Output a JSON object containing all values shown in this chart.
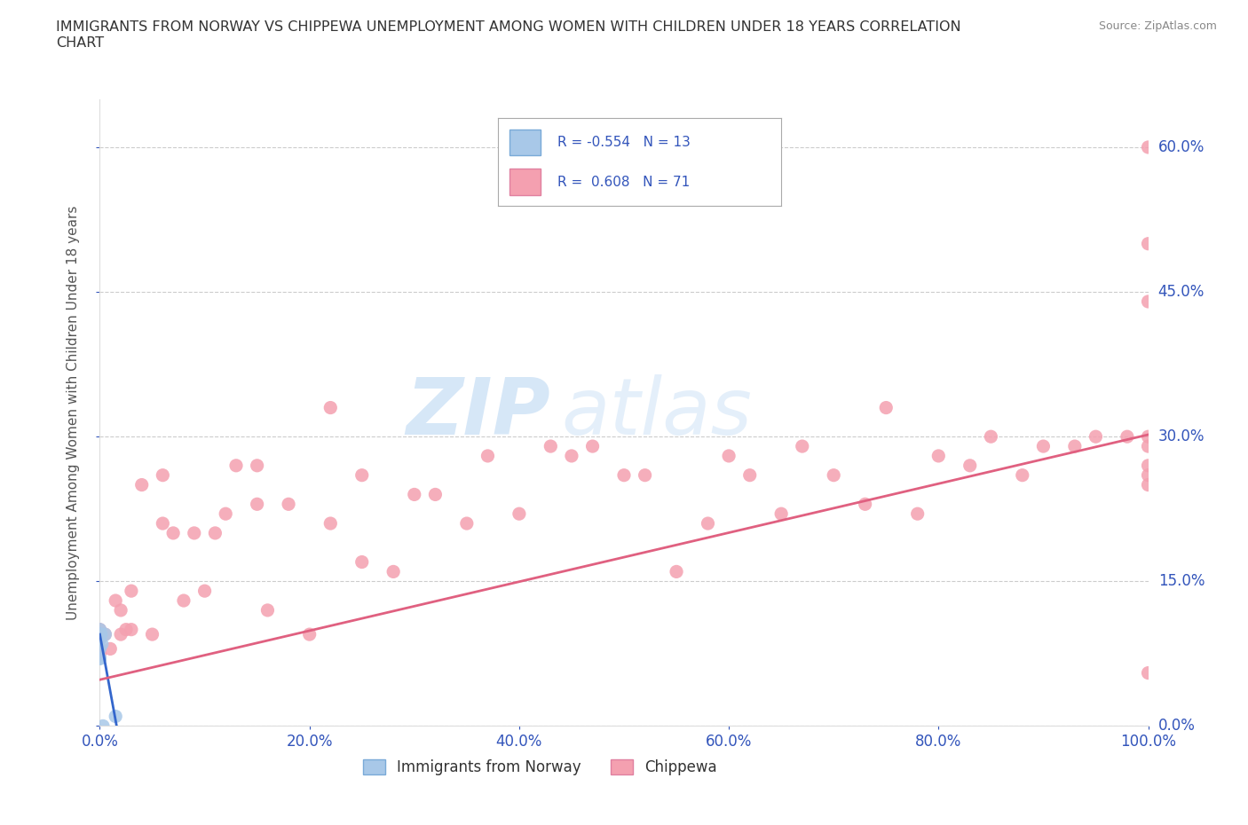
{
  "title": "IMMIGRANTS FROM NORWAY VS CHIPPEWA UNEMPLOYMENT AMONG WOMEN WITH CHILDREN UNDER 18 YEARS CORRELATION\nCHART",
  "source": "Source: ZipAtlas.com",
  "ylabel": "Unemployment Among Women with Children Under 18 years",
  "norway_R": -0.554,
  "norway_N": 13,
  "chippewa_R": 0.608,
  "chippewa_N": 71,
  "norway_color": "#a8c8e8",
  "norway_line_color": "#3366cc",
  "chippewa_color": "#f4a0b0",
  "chippewa_line_color": "#e06080",
  "norway_x": [
    0.0,
    0.0,
    0.0,
    0.0,
    0.0,
    0.0,
    0.0,
    0.1,
    0.1,
    0.2,
    0.3,
    0.5,
    1.5
  ],
  "norway_y": [
    0.07,
    0.07,
    0.08,
    0.09,
    0.095,
    0.095,
    0.1,
    0.095,
    0.095,
    0.085,
    0.0,
    0.095,
    0.01
  ],
  "chippewa_x": [
    0.0,
    0.0,
    0.0,
    0.0,
    0.0,
    0.5,
    1.0,
    1.5,
    2.0,
    2.0,
    2.5,
    3.0,
    3.0,
    4.0,
    5.0,
    6.0,
    6.0,
    7.0,
    8.0,
    9.0,
    10.0,
    11.0,
    12.0,
    13.0,
    15.0,
    15.0,
    16.0,
    18.0,
    20.0,
    22.0,
    22.0,
    25.0,
    25.0,
    28.0,
    30.0,
    32.0,
    35.0,
    37.0,
    40.0,
    43.0,
    45.0,
    47.0,
    50.0,
    52.0,
    55.0,
    58.0,
    60.0,
    62.0,
    65.0,
    67.0,
    70.0,
    73.0,
    75.0,
    78.0,
    80.0,
    83.0,
    85.0,
    88.0,
    90.0,
    93.0,
    95.0,
    98.0,
    100.0,
    100.0,
    100.0,
    100.0,
    100.0,
    100.0,
    100.0,
    100.0,
    100.0
  ],
  "chippewa_y": [
    0.075,
    0.08,
    0.09,
    0.095,
    0.1,
    0.095,
    0.08,
    0.13,
    0.095,
    0.12,
    0.1,
    0.1,
    0.14,
    0.25,
    0.095,
    0.21,
    0.26,
    0.2,
    0.13,
    0.2,
    0.14,
    0.2,
    0.22,
    0.27,
    0.23,
    0.27,
    0.12,
    0.23,
    0.095,
    0.33,
    0.21,
    0.17,
    0.26,
    0.16,
    0.24,
    0.24,
    0.21,
    0.28,
    0.22,
    0.29,
    0.28,
    0.29,
    0.26,
    0.26,
    0.16,
    0.21,
    0.28,
    0.26,
    0.22,
    0.29,
    0.26,
    0.23,
    0.33,
    0.22,
    0.28,
    0.27,
    0.3,
    0.26,
    0.29,
    0.29,
    0.3,
    0.3,
    0.6,
    0.5,
    0.44,
    0.3,
    0.29,
    0.27,
    0.26,
    0.25,
    0.055
  ],
  "nor_line_x0": 0.0,
  "nor_line_y0": 0.095,
  "nor_line_x1": 1.6,
  "nor_line_y1": 0.0,
  "chip_line_x0": 0.0,
  "chip_line_y0": 0.048,
  "chip_line_x1": 100.0,
  "chip_line_y1": 0.302,
  "xlim": [
    0,
    100
  ],
  "ylim": [
    0,
    0.65
  ],
  "xticks": [
    0,
    20,
    40,
    60,
    80,
    100
  ],
  "xticklabels": [
    "0.0%",
    "20.0%",
    "40.0%",
    "60.0%",
    "80.0%",
    "100.0%"
  ],
  "yticks": [
    0.0,
    0.15,
    0.3,
    0.45,
    0.6
  ],
  "yticklabels": [
    "0.0%",
    "15.0%",
    "30.0%",
    "45.0%",
    "60.0%"
  ],
  "grid_color": "#cccccc",
  "background_color": "#ffffff",
  "tick_color": "#3355bb",
  "title_color": "#333333",
  "axis_label_color": "#555555",
  "legend_norway_label": "R = -0.554   N = 13",
  "legend_chippewa_label": "R =  0.608   N = 71",
  "bottom_legend_norway": "Immigrants from Norway",
  "bottom_legend_chippewa": "Chippewa"
}
